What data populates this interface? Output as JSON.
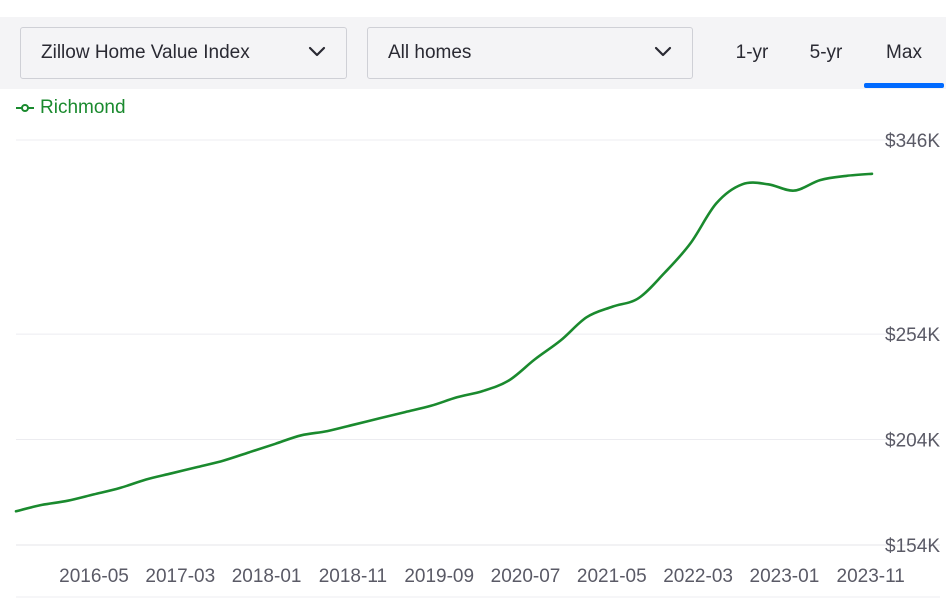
{
  "toolbar": {
    "metric_select": "Zillow Home Value Index",
    "home_type_select": "All homes",
    "ranges": [
      "1-yr",
      "5-yr",
      "Max"
    ],
    "active_range": "Max",
    "accent_color": "#006aff"
  },
  "legend": {
    "label": "Richmond",
    "color": "#1a8a2e"
  },
  "chart_data": {
    "type": "line",
    "x_tick_labels": [
      "2016-05",
      "2017-03",
      "2018-01",
      "2018-11",
      "2019-09",
      "2020-07",
      "2021-05",
      "2022-03",
      "2023-01",
      "2023-11"
    ],
    "y_tick_labels": [
      "$346K",
      "$254K",
      "$204K",
      "$154K"
    ],
    "y_ticks": [
      346,
      254,
      204,
      154
    ],
    "ylim": [
      154,
      346
    ],
    "xlim": [
      2015.75,
      2024.0
    ],
    "grid": true,
    "series": [
      {
        "name": "Richmond",
        "color": "#1a8a2e",
        "x": [
          2015.75,
          2016.0,
          2016.25,
          2016.5,
          2016.75,
          2017.0,
          2017.25,
          2017.5,
          2017.75,
          2018.0,
          2018.25,
          2018.5,
          2018.75,
          2019.0,
          2019.25,
          2019.5,
          2019.75,
          2020.0,
          2020.25,
          2020.5,
          2020.75,
          2021.0,
          2021.25,
          2021.5,
          2021.75,
          2022.0,
          2022.25,
          2022.5,
          2022.75,
          2023.0,
          2023.25,
          2023.5,
          2023.75,
          2024.0
        ],
        "values": [
          170,
          173,
          175,
          178,
          181,
          185,
          188,
          191,
          194,
          198,
          202,
          206,
          208,
          211,
          214,
          217,
          220,
          224,
          227,
          232,
          242,
          251,
          262,
          267,
          271,
          283,
          297,
          316,
          325,
          325,
          322,
          327,
          329,
          330
        ]
      }
    ]
  }
}
